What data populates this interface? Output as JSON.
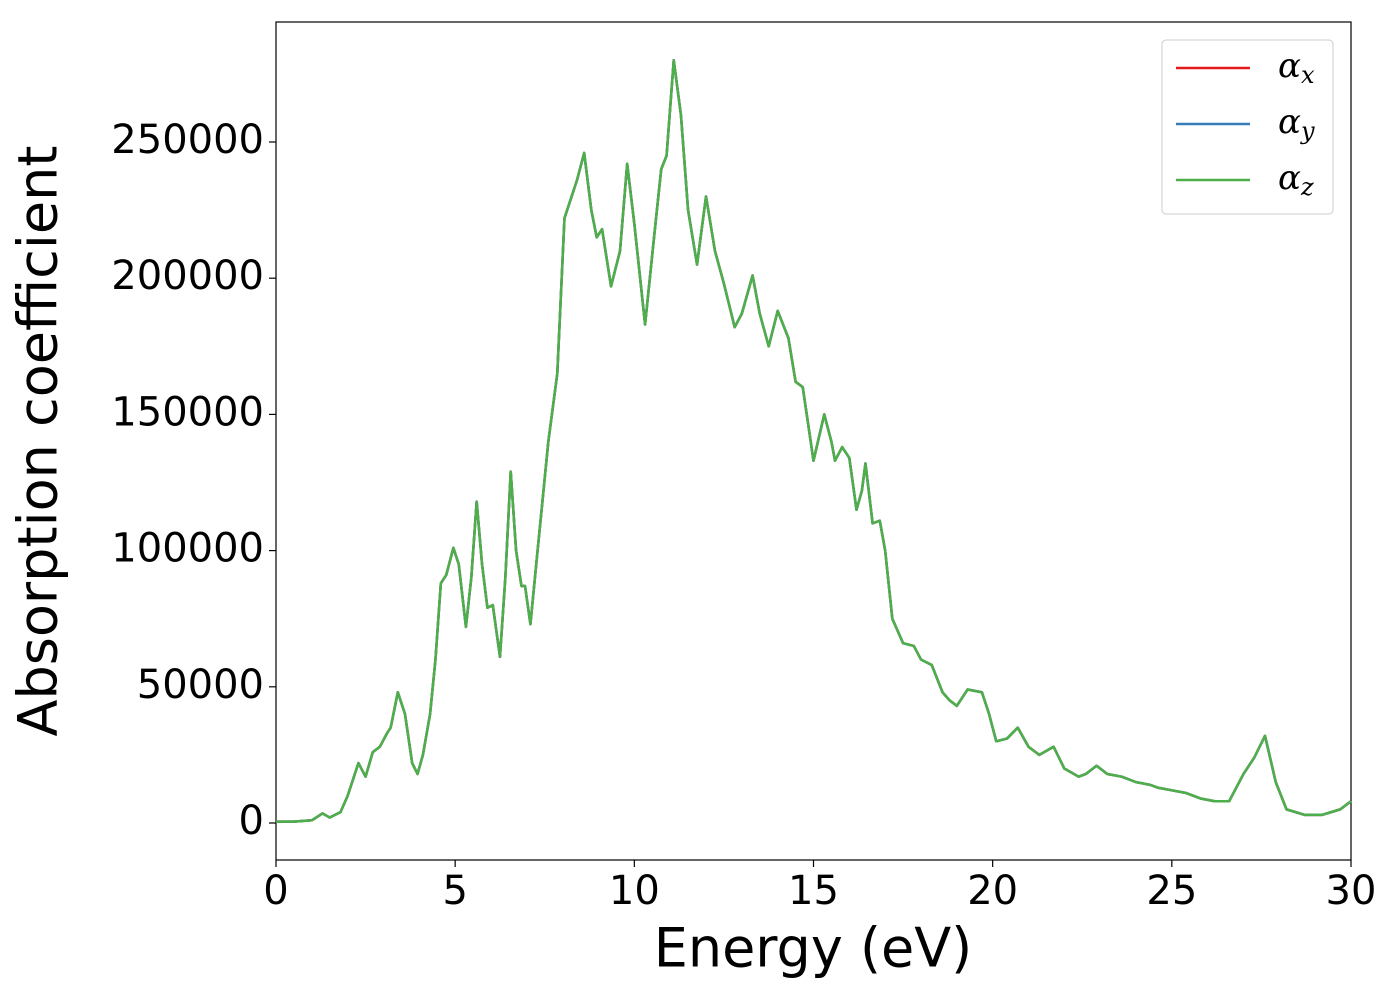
{
  "chart_data": {
    "type": "line",
    "xlabel": "Energy (eV)",
    "ylabel": "Absorption coefficient",
    "x": [
      0,
      0.5,
      1.0,
      1.3,
      1.5,
      1.8,
      2.0,
      2.3,
      2.5,
      2.7,
      2.9,
      3.1,
      3.2,
      3.4,
      3.6,
      3.8,
      3.95,
      4.1,
      4.3,
      4.45,
      4.6,
      4.75,
      4.95,
      5.1,
      5.3,
      5.45,
      5.6,
      5.75,
      5.9,
      6.05,
      6.25,
      6.4,
      6.55,
      6.7,
      6.85,
      6.95,
      7.1,
      7.3,
      7.6,
      7.85,
      8.05,
      8.2,
      8.4,
      8.6,
      8.8,
      8.95,
      9.1,
      9.35,
      9.6,
      9.8,
      10.0,
      10.3,
      10.55,
      10.75,
      10.9,
      11.1,
      11.3,
      11.5,
      11.75,
      12.0,
      12.25,
      12.5,
      12.8,
      13.0,
      13.3,
      13.5,
      13.75,
      14.0,
      14.3,
      14.5,
      14.7,
      15.0,
      15.3,
      15.5,
      15.6,
      15.8,
      16.0,
      16.2,
      16.35,
      16.45,
      16.65,
      16.85,
      17.0,
      17.2,
      17.5,
      17.8,
      18.0,
      18.3,
      18.6,
      18.8,
      19.0,
      19.3,
      19.7,
      19.9,
      20.1,
      20.4,
      20.7,
      21.0,
      21.3,
      21.7,
      22.0,
      22.4,
      22.6,
      22.9,
      23.2,
      23.6,
      24.0,
      24.4,
      24.6,
      25.0,
      25.4,
      25.8,
      26.2,
      26.6,
      27.0,
      27.3,
      27.6,
      27.9,
      28.2,
      28.7,
      29.2,
      29.7,
      30
    ],
    "series": [
      {
        "name": "αx",
        "color": "#e41a1c",
        "values": [
          500,
          500,
          1000,
          3500,
          2000,
          4000,
          10000,
          22000,
          17000,
          26000,
          28000,
          33000,
          35000,
          48000,
          40000,
          22000,
          18000,
          25000,
          40000,
          60000,
          88000,
          91000,
          101000,
          95000,
          72000,
          90000,
          118000,
          95000,
          79000,
          80000,
          61000,
          90000,
          129000,
          100000,
          87000,
          87000,
          73000,
          100000,
          140000,
          165000,
          222000,
          228000,
          236000,
          246000,
          225000,
          215000,
          218000,
          197000,
          210000,
          242000,
          220000,
          183000,
          215000,
          240000,
          245000,
          280000,
          260000,
          225000,
          205000,
          230000,
          210000,
          198000,
          182000,
          187000,
          201000,
          187000,
          175000,
          188000,
          178000,
          162000,
          160000,
          133000,
          150000,
          140000,
          133000,
          138000,
          134000,
          115000,
          122000,
          132000,
          110000,
          111000,
          100000,
          75000,
          66000,
          65000,
          60000,
          58000,
          48000,
          45000,
          43000,
          49000,
          48000,
          40000,
          30000,
          31000,
          35000,
          28000,
          25000,
          28000,
          20000,
          17000,
          18000,
          21000,
          18000,
          17000,
          15000,
          14000,
          13000,
          12000,
          11000,
          9000,
          8000,
          8000,
          18000,
          24000,
          32000,
          15000,
          5000,
          3000,
          3000,
          5000,
          8000
        ]
      },
      {
        "name": "αy",
        "color": "#377eb8",
        "values": [
          500,
          500,
          1000,
          3500,
          2000,
          4000,
          10000,
          22000,
          17000,
          26000,
          28000,
          33000,
          35000,
          48000,
          40000,
          22000,
          18000,
          25000,
          40000,
          60000,
          88000,
          91000,
          101000,
          95000,
          72000,
          90000,
          118000,
          95000,
          79000,
          80000,
          61000,
          90000,
          129000,
          100000,
          87000,
          87000,
          73000,
          100000,
          140000,
          165000,
          222000,
          228000,
          236000,
          246000,
          225000,
          215000,
          218000,
          197000,
          210000,
          242000,
          220000,
          183000,
          215000,
          240000,
          245000,
          280000,
          260000,
          225000,
          205000,
          230000,
          210000,
          198000,
          182000,
          187000,
          201000,
          187000,
          175000,
          188000,
          178000,
          162000,
          160000,
          133000,
          150000,
          140000,
          133000,
          138000,
          134000,
          115000,
          122000,
          132000,
          110000,
          111000,
          100000,
          75000,
          66000,
          65000,
          60000,
          58000,
          48000,
          45000,
          43000,
          49000,
          48000,
          40000,
          30000,
          31000,
          35000,
          28000,
          25000,
          28000,
          20000,
          17000,
          18000,
          21000,
          18000,
          17000,
          15000,
          14000,
          13000,
          12000,
          11000,
          9000,
          8000,
          8000,
          18000,
          24000,
          32000,
          15000,
          5000,
          3000,
          3000,
          5000,
          8000
        ]
      },
      {
        "name": "αz",
        "color": "#4daf4a",
        "values": [
          500,
          500,
          1000,
          3500,
          2000,
          4000,
          10000,
          22000,
          17000,
          26000,
          28000,
          33000,
          35000,
          48000,
          40000,
          22000,
          18000,
          25000,
          40000,
          60000,
          88000,
          91000,
          101000,
          95000,
          72000,
          90000,
          118000,
          95000,
          79000,
          80000,
          61000,
          90000,
          129000,
          100000,
          87000,
          87000,
          73000,
          100000,
          140000,
          165000,
          222000,
          228000,
          236000,
          246000,
          225000,
          215000,
          218000,
          197000,
          210000,
          242000,
          220000,
          183000,
          215000,
          240000,
          245000,
          280000,
          260000,
          225000,
          205000,
          230000,
          210000,
          198000,
          182000,
          187000,
          201000,
          187000,
          175000,
          188000,
          178000,
          162000,
          160000,
          133000,
          150000,
          140000,
          133000,
          138000,
          134000,
          115000,
          122000,
          132000,
          110000,
          111000,
          100000,
          75000,
          66000,
          65000,
          60000,
          58000,
          48000,
          45000,
          43000,
          49000,
          48000,
          40000,
          30000,
          31000,
          35000,
          28000,
          25000,
          28000,
          20000,
          17000,
          18000,
          21000,
          18000,
          17000,
          15000,
          14000,
          13000,
          12000,
          11000,
          9000,
          8000,
          8000,
          18000,
          24000,
          32000,
          15000,
          5000,
          3000,
          3000,
          5000,
          8000
        ]
      }
    ],
    "xlim": [
      0,
      30
    ],
    "xticks": [
      0,
      5,
      10,
      15,
      20,
      25,
      30
    ],
    "ylim": [
      -13583,
      294053
    ],
    "yticks": [
      0,
      50000,
      100000,
      150000,
      200000,
      250000
    ],
    "grid": false,
    "legend": "upper right"
  }
}
